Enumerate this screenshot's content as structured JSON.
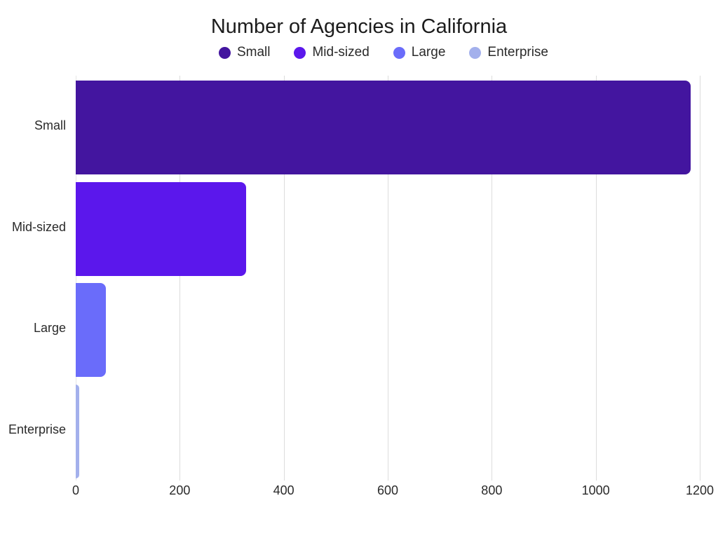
{
  "chart_data": {
    "type": "bar",
    "orientation": "horizontal",
    "title": "Number of Agencies in California",
    "categories": [
      "Small",
      "Mid-sized",
      "Large",
      "Enterprise"
    ],
    "values": [
      1182,
      328,
      58,
      7
    ],
    "colors": [
      "#43159f",
      "#5b17ec",
      "#6a6cfa",
      "#a3b0ec"
    ],
    "xlabel": "",
    "ylabel": "",
    "xlim": [
      0,
      1200
    ],
    "xticks": [
      0,
      200,
      400,
      600,
      800,
      1000,
      1200
    ],
    "grid": "vertical",
    "legend": {
      "position": "top",
      "entries": [
        "Small",
        "Mid-sized",
        "Large",
        "Enterprise"
      ]
    }
  },
  "title": "Number of Agencies in California",
  "legend": [
    {
      "label": "Small",
      "color": "#43159f"
    },
    {
      "label": "Mid-sized",
      "color": "#5b17ec"
    },
    {
      "label": "Large",
      "color": "#6a6cfa"
    },
    {
      "label": "Enterprise",
      "color": "#a3b0ec"
    }
  ],
  "ticks": [
    "0",
    "200",
    "400",
    "600",
    "800",
    "1000",
    "1200"
  ]
}
